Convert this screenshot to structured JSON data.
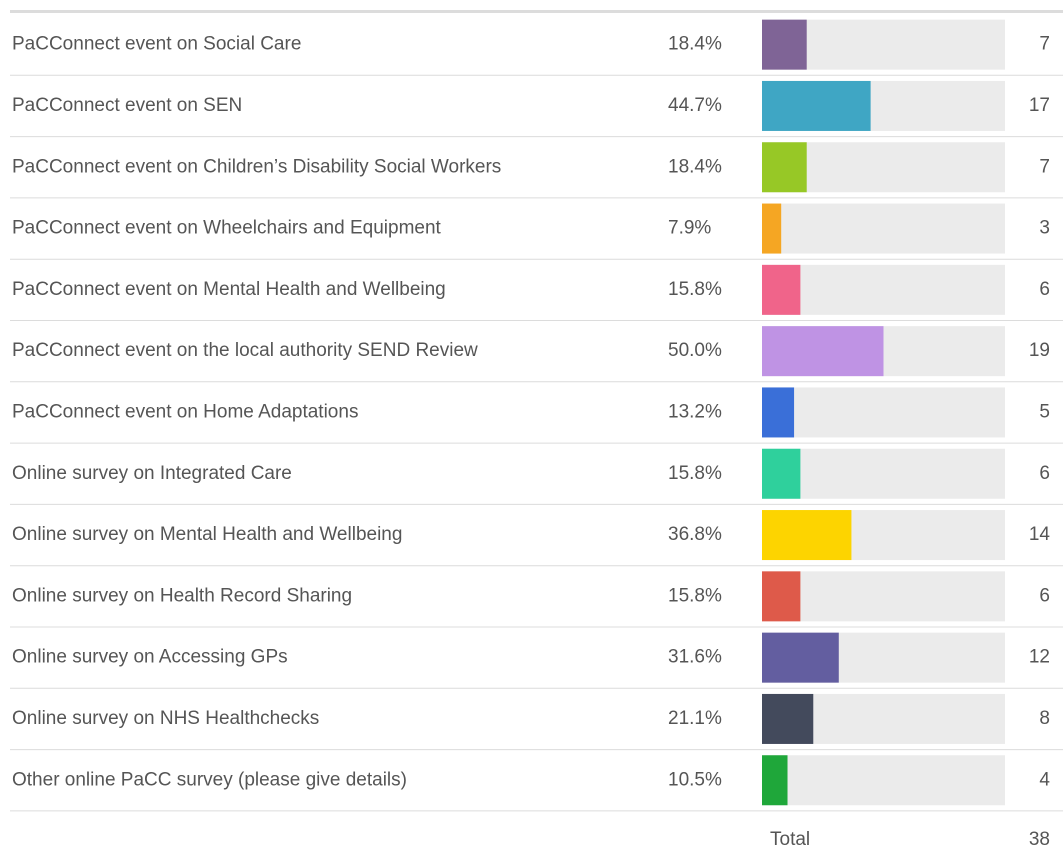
{
  "chart_data": {
    "type": "bar",
    "categories": [
      "PaCConnect event on Social Care",
      "PaCConnect event on SEN",
      "PaCConnect event on Children’s Disability Social Workers",
      "PaCConnect event on Wheelchairs and Equipment",
      "PaCConnect event on Mental Health and Wellbeing",
      "PaCConnect event on the local authority SEND Review",
      "PaCConnect event on Home Adaptations",
      "Online survey on Integrated Care",
      "Online survey on Mental Health and Wellbeing",
      "Online survey on Health Record Sharing",
      "Online survey on Accessing GPs",
      "Online survey on NHS Healthchecks",
      "Other online PaCC survey (please give details)"
    ],
    "values": [
      18.4,
      44.7,
      18.4,
      7.9,
      15.8,
      50.0,
      13.2,
      15.8,
      36.8,
      15.8,
      31.6,
      21.1,
      10.5
    ],
    "value_labels": [
      "18.4%",
      "44.7%",
      "18.4%",
      "7.9%",
      "15.8%",
      "50.0%",
      "13.2%",
      "15.8%",
      "36.8%",
      "15.8%",
      "31.6%",
      "21.1%",
      "10.5%"
    ],
    "colors": [
      "#7f6496",
      "#3fa6c4",
      "#97c826",
      "#f5a623",
      "#f0648a",
      "#bf93e4",
      "#3a6fd8",
      "#2fd09c",
      "#fdd400",
      "#de5a4a",
      "#635ea0",
      "#434a5c",
      "#1fa73a"
    ],
    "counts": [
      7,
      17,
      7,
      3,
      6,
      19,
      5,
      6,
      14,
      6,
      12,
      8,
      4
    ],
    "xlim": [
      0,
      100
    ],
    "total_label": "Total",
    "total": 38
  }
}
